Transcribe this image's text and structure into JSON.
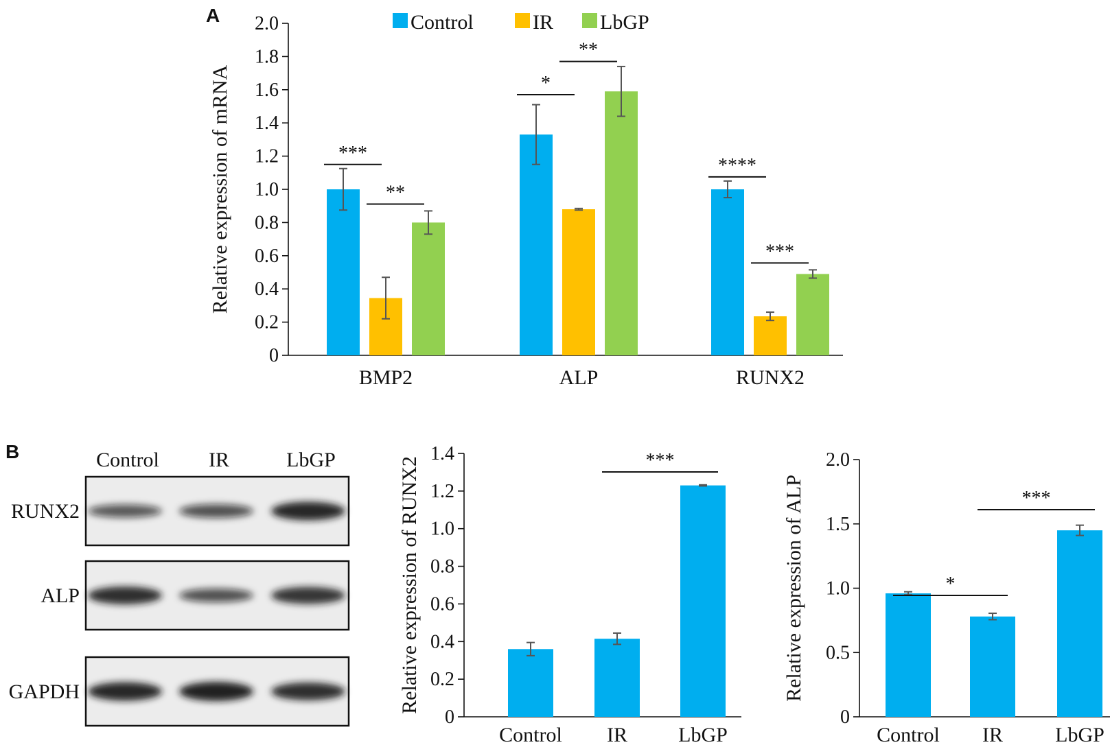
{
  "panels": {
    "a": "A",
    "b": "B"
  },
  "colors": {
    "control": "#00aeef",
    "ir": "#ffc000",
    "lbgp": "#92d050",
    "err": "#555555"
  },
  "chart_data": [
    {
      "id": "mrna",
      "type": "bar",
      "ylabel": "Relative expression of mRNA",
      "ylim": [
        0,
        2.0
      ],
      "yticks": [
        "0",
        "0.2",
        "0.4",
        "0.6",
        "0.8",
        "1.0",
        "1.2",
        "1.4",
        "1.6",
        "1.8",
        "2.0"
      ],
      "categories": [
        "BMP2",
        "ALP",
        "RUNX2"
      ],
      "series": [
        {
          "name": "Control",
          "values": [
            1.0,
            1.33,
            1.0
          ],
          "errors": [
            0.125,
            0.18,
            0.05
          ]
        },
        {
          "name": "IR",
          "values": [
            0.345,
            0.88,
            0.235
          ],
          "errors": [
            0.125,
            0.005,
            0.025
          ]
        },
        {
          "name": "LbGP",
          "values": [
            0.8,
            1.59,
            0.49
          ],
          "errors": [
            0.07,
            0.15,
            0.025
          ]
        }
      ],
      "significance": [
        {
          "category": 0,
          "from": 0,
          "to": 1,
          "label": "***"
        },
        {
          "category": 0,
          "from": 1,
          "to": 2,
          "label": "**"
        },
        {
          "category": 1,
          "from": 0,
          "to": 1,
          "label": "*"
        },
        {
          "category": 1,
          "from": 1,
          "to": 2,
          "label": "**"
        },
        {
          "category": 2,
          "from": 0,
          "to": 1,
          "label": "****"
        },
        {
          "category": 2,
          "from": 1,
          "to": 2,
          "label": "***"
        }
      ],
      "legend": "top"
    },
    {
      "id": "runx2",
      "type": "bar",
      "ylabel": "Relative expression of RUNX2",
      "ylim": [
        0,
        1.4
      ],
      "yticks": [
        "0",
        "0.2",
        "0.4",
        "0.6",
        "0.8",
        "1.0",
        "1.2",
        "1.4"
      ],
      "categories": [
        "Control",
        "IR",
        "LbGP"
      ],
      "values": [
        0.36,
        0.415,
        1.23
      ],
      "errors": [
        0.035,
        0.03,
        0.003
      ],
      "significance": [
        {
          "from": 1,
          "to": 2,
          "label": "***"
        }
      ]
    },
    {
      "id": "alp",
      "type": "bar",
      "ylabel": "Relative expression of ALP",
      "ylim": [
        0,
        2.0
      ],
      "yticks": [
        "0",
        "0.5",
        "1.0",
        "1.5",
        "2.0"
      ],
      "categories": [
        "Control",
        "IR",
        "LbGP"
      ],
      "values": [
        0.96,
        0.78,
        1.45
      ],
      "errors": [
        0.012,
        0.025,
        0.04
      ],
      "significance": [
        {
          "from": 0,
          "to": 1,
          "label": "*"
        },
        {
          "from": 1,
          "to": 2,
          "label": "***"
        }
      ]
    }
  ],
  "blot": {
    "lanes": [
      "Control",
      "IR",
      "LbGP"
    ],
    "rows": [
      {
        "label": "RUNX2",
        "intensity": [
          0.55,
          0.6,
          0.95
        ]
      },
      {
        "label": "ALP",
        "intensity": [
          0.9,
          0.6,
          0.85
        ]
      },
      {
        "label": "GAPDH",
        "intensity": [
          0.95,
          1.0,
          0.9
        ]
      }
    ]
  }
}
